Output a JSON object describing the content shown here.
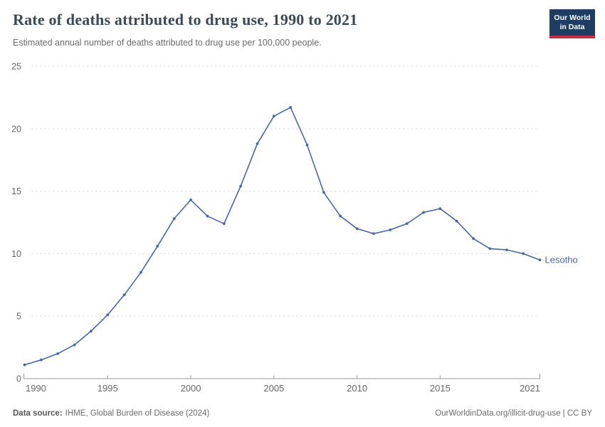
{
  "header": {
    "title": "Rate of deaths attributed to drug use, 1990 to 2021",
    "subtitle": "Estimated annual number of deaths attributed to drug use per 100,000 people.",
    "logo": {
      "line1": "Our World",
      "line2": "in Data"
    }
  },
  "chart_data": {
    "type": "line",
    "title": "Rate of deaths attributed to drug use, 1990 to 2021",
    "subtitle": "Estimated annual number of deaths attributed to drug use per 100,000 people.",
    "xlim": [
      1990,
      2021
    ],
    "ylim": [
      0,
      25
    ],
    "x_ticks": [
      1990,
      1995,
      2000,
      2005,
      2010,
      2015,
      2021
    ],
    "y_ticks": [
      0,
      5,
      10,
      15,
      20,
      25
    ],
    "grid": "horizontal-dashed",
    "legend": "end-of-line-label",
    "series": [
      {
        "name": "Lesotho",
        "color": "#4968a3",
        "x": [
          1990,
          1991,
          1992,
          1993,
          1994,
          1995,
          1996,
          1997,
          1998,
          1999,
          2000,
          2001,
          2002,
          2003,
          2004,
          2005,
          2006,
          2007,
          2008,
          2009,
          2010,
          2011,
          2012,
          2013,
          2014,
          2015,
          2016,
          2017,
          2018,
          2019,
          2020,
          2021
        ],
        "values": [
          1.1,
          1.5,
          2.0,
          2.7,
          3.8,
          5.1,
          6.7,
          8.5,
          10.6,
          12.8,
          14.3,
          13.0,
          12.4,
          15.4,
          18.8,
          21.0,
          21.7,
          18.7,
          14.9,
          13.0,
          12.0,
          11.6,
          11.9,
          12.4,
          13.3,
          13.6,
          12.6,
          11.2,
          10.4,
          10.3,
          10.0,
          9.5
        ]
      }
    ]
  },
  "footer": {
    "datasource_label": "Data source:",
    "datasource_value": "IHME, Global Burden of Disease (2024)",
    "attribution": "OurWorldinData.org/illicit-drug-use | CC BY"
  },
  "colors": {
    "line": "#4968a3",
    "grid": "#dddddd",
    "axis": "#9a9a9a",
    "tick_text": "#666666",
    "title": "#3b4a54",
    "logo_bg": "#1d3d63",
    "logo_bar": "#c32e40"
  }
}
